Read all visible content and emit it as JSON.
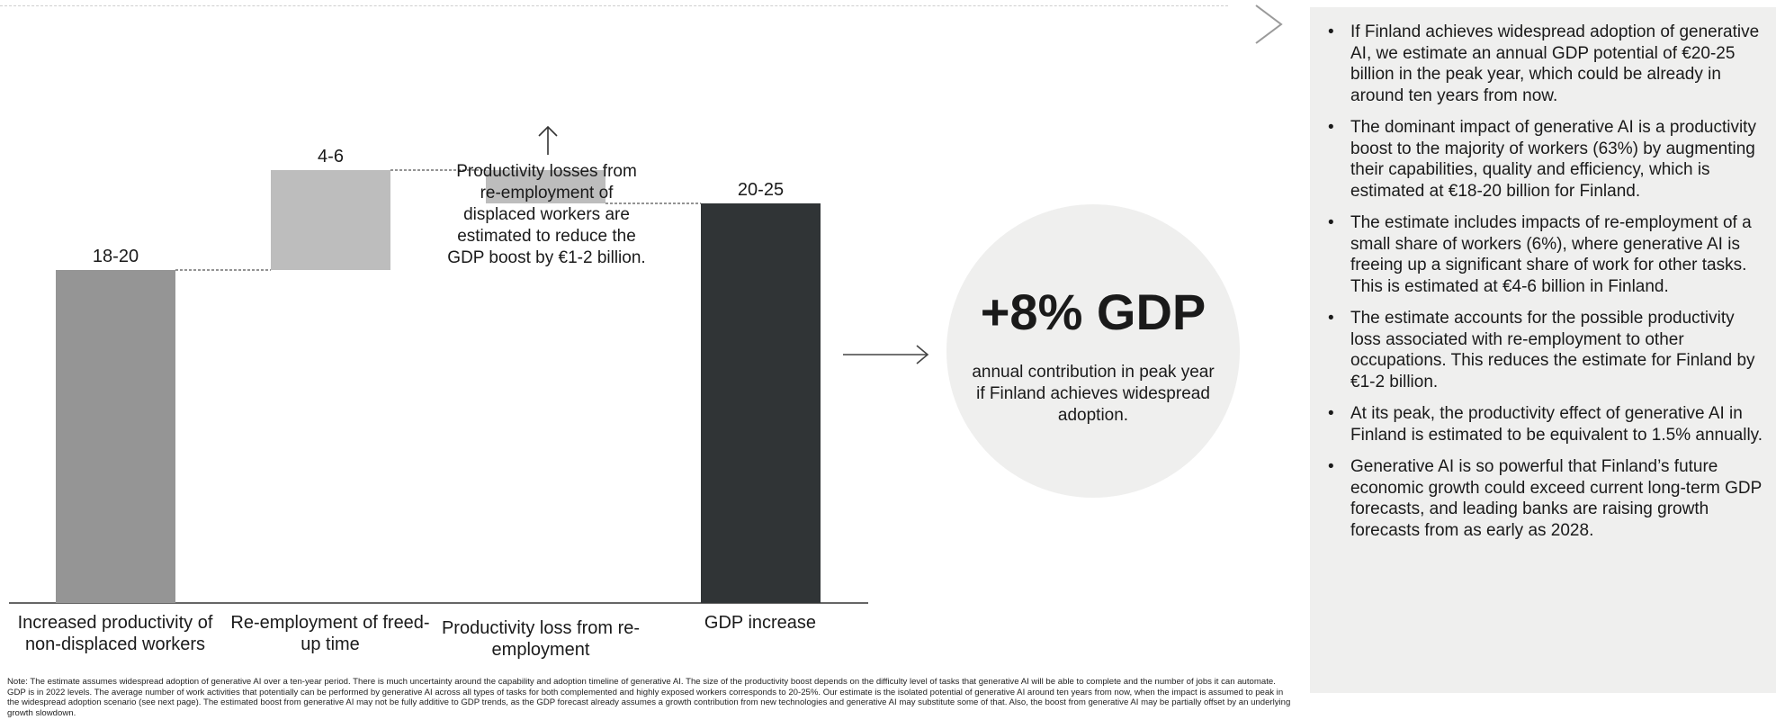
{
  "chart_data": {
    "type": "bar",
    "subtype": "waterfall",
    "unit": "€ billion",
    "categories": [
      "Increased productivity of non-displaced workers",
      "Re-employment of freed-up time",
      "Productivity loss from re-employment",
      "GDP increase"
    ],
    "steps": [
      {
        "label": "18-20",
        "low": 18,
        "high": 20,
        "kind": "base",
        "color": "#959595"
      },
      {
        "label": "4-6",
        "low": 4,
        "high": 6,
        "kind": "increase",
        "color": "#bdbdbd"
      },
      {
        "label": "",
        "low": -2,
        "high": -1,
        "kind": "decrease",
        "color": "#bdbdbd"
      },
      {
        "label": "20-25",
        "low": 20,
        "high": 25,
        "kind": "total",
        "color": "#303436"
      }
    ],
    "annotation": "Productivity losses from re-employment of displaced workers are estimated to reduce the GDP boost by €1-2 billion."
  },
  "kpi": {
    "value": "+8% GDP",
    "text": "annual contribution in peak year if Finland achieves widespread adoption."
  },
  "bullets": [
    "If Finland achieves widespread adoption of generative AI, we estimate an annual GDP potential of €20-25 billion in the peak year, which could be already in around ten years from now.",
    "The dominant impact of generative AI is a productivity boost to the majority of workers (63%) by augmenting their capabilities, quality and efficiency, which is estimated at €18-20 billion for Finland.",
    "The estimate includes impacts of re-employment of a small share of workers (6%), where generative AI is freeing up a significant share of work for other tasks. This is estimated at €4-6 billion in Finland.",
    "The estimate accounts for the possible productivity loss associated with re-employment to other occupations. This reduces the estimate for Finland by €1-2 billion.",
    "At its peak, the productivity effect of generative AI in Finland is estimated to be equivalent to 1.5% annually.",
    "Generative AI is so powerful that Finland’s future economic growth could exceed current long-term GDP forecasts, and leading banks are raising growth forecasts from as early as 2028."
  ],
  "bullet_symbol": "•",
  "footnote": "Note: The estimate assumes widespread adoption of generative AI over a ten-year period. There is much uncertainty around the capability and adoption timeline of generative AI. The size of the productivity boost depends on the difficulty level of tasks that generative AI will be able to complete and the number of jobs it can automate. GDP is in 2022 levels. The average number of work activities that potentially can be performed by generative AI across all types of tasks for both complemented and highly exposed workers corresponds to 20-25%. Our estimate is the isolated potential of generative AI around ten years from now, when the impact is assumed to peak in the widespread adoption scenario (see next page). The estimated boost from generative AI may not be fully additive to GDP trends, as the GDP forecast already assumes a growth contribution from new technologies and generative AI may substitute some of that. Also, the boost from generative AI may be partially offset by an underlying growth slowdown."
}
